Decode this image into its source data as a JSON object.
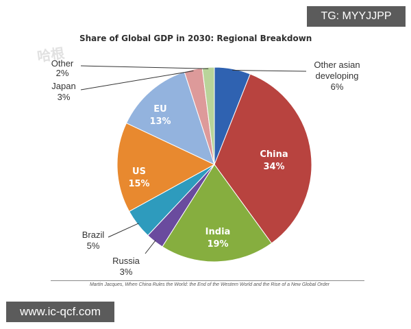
{
  "watermarks": {
    "top_right": "TG: MYYJJPP",
    "bottom_left": "www.ic-qcf.com",
    "left_overlay": "哈根"
  },
  "chart_data": {
    "type": "pie",
    "title": "Share of Global GDP in 2030: Regional Breakdown",
    "source": "Martin Jacques, When China Rules the World: the End of the Western World and the Rise of a New Global Order",
    "slices": [
      {
        "label": "Other asian developing",
        "value": 6,
        "percent_label": "6%",
        "color": "#2f62b1",
        "label_style": "outside"
      },
      {
        "label": "China",
        "value": 34,
        "percent_label": "34%",
        "color": "#b8433f",
        "label_style": "inside"
      },
      {
        "label": "India",
        "value": 19,
        "percent_label": "19%",
        "color": "#86ae3f",
        "label_style": "inside"
      },
      {
        "label": "Russia",
        "value": 3,
        "percent_label": "3%",
        "color": "#6a4b9e",
        "label_style": "outside"
      },
      {
        "label": "Brazil",
        "value": 5,
        "percent_label": "5%",
        "color": "#2e9bbd",
        "label_style": "outside"
      },
      {
        "label": "US",
        "value": 15,
        "percent_label": "15%",
        "color": "#e8892f",
        "label_style": "inside"
      },
      {
        "label": "EU",
        "value": 13,
        "percent_label": "13%",
        "color": "#93b3de",
        "label_style": "inside"
      },
      {
        "label": "Japan",
        "value": 3,
        "percent_label": "3%",
        "color": "#dd9a9a",
        "label_style": "outside"
      },
      {
        "label": "Other",
        "value": 2,
        "percent_label": "2%",
        "color": "#b9d49a",
        "label_style": "outside"
      }
    ]
  }
}
